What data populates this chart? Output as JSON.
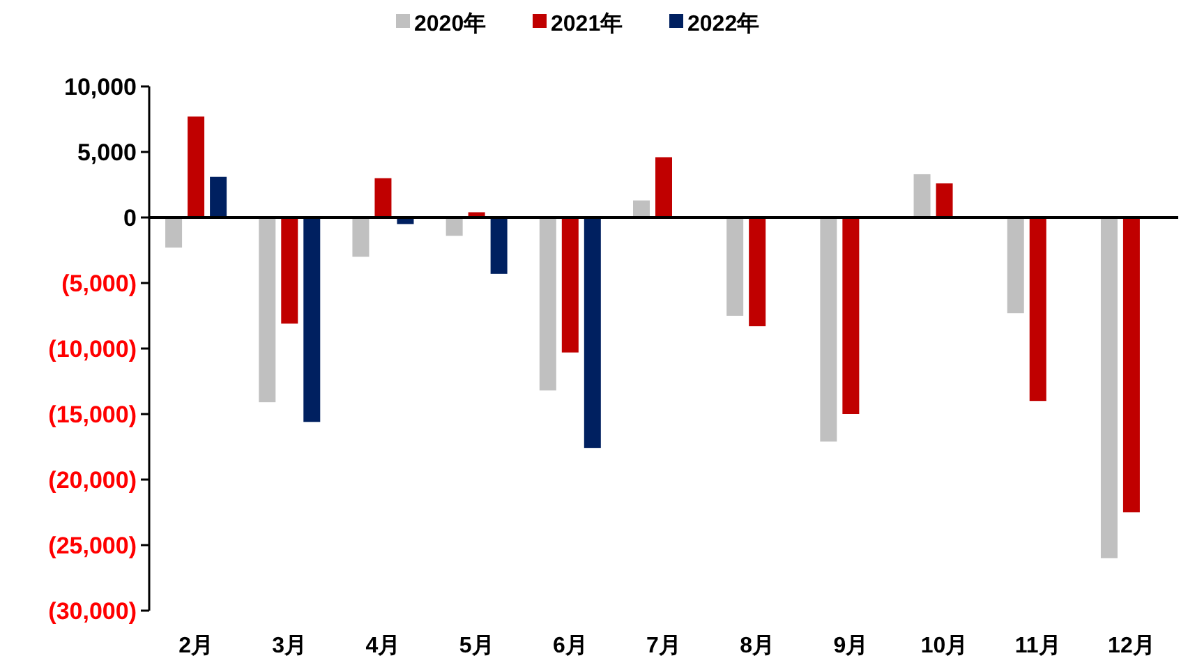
{
  "chart_data": {
    "type": "bar",
    "categories": [
      "2月",
      "3月",
      "4月",
      "5月",
      "6月",
      "7月",
      "8月",
      "9月",
      "10月",
      "11月",
      "12月"
    ],
    "series": [
      {
        "name": "2020年",
        "color": "#c0c0c0",
        "values": [
          -2300,
          -14100,
          -3000,
          -1400,
          -13200,
          1300,
          -7500,
          -17100,
          3300,
          -7300,
          -26000
        ]
      },
      {
        "name": "2021年",
        "color": "#c00000",
        "values": [
          7700,
          -8100,
          3000,
          400,
          -10300,
          4600,
          -8300,
          -15000,
          2600,
          -14000,
          -22500
        ]
      },
      {
        "name": "2022年",
        "color": "#002060",
        "values": [
          3100,
          -15600,
          -500,
          -4300,
          -17600,
          null,
          null,
          null,
          null,
          null,
          null
        ]
      }
    ],
    "ylim": [
      -30000,
      10000
    ],
    "yticks": [
      {
        "value": -30000,
        "label": "(30,000)"
      },
      {
        "value": -25000,
        "label": "(25,000)"
      },
      {
        "value": -20000,
        "label": "(20,000)"
      },
      {
        "value": -15000,
        "label": "(15,000)"
      },
      {
        "value": -10000,
        "label": "(10,000)"
      },
      {
        "value": -5000,
        "label": "(5,000)"
      },
      {
        "value": 0,
        "label": "0"
      },
      {
        "value": 5000,
        "label": "5,000"
      },
      {
        "value": 10000,
        "label": "10,000"
      }
    ],
    "legend": "top"
  }
}
